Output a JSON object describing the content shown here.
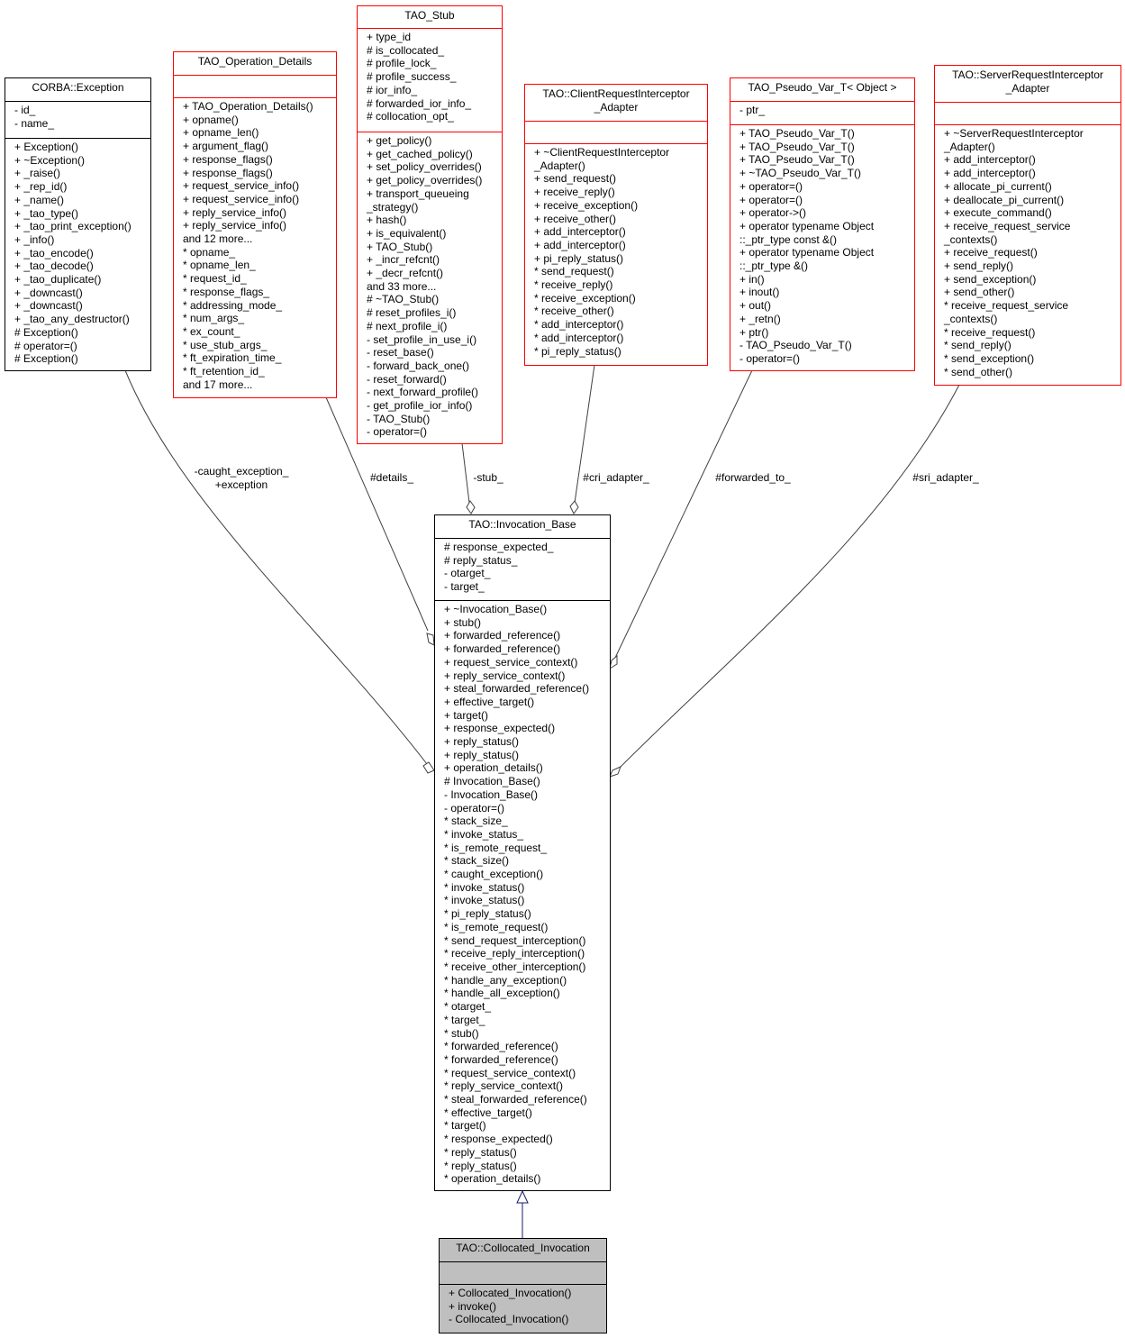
{
  "classes": {
    "corba_exception": {
      "title": "CORBA::Exception",
      "attributes": [
        "- id_",
        "- name_"
      ],
      "methods": [
        "+ Exception()",
        "+ ~Exception()",
        "+ _raise()",
        "+ _rep_id()",
        "+ _name()",
        "+ _tao_type()",
        "+ _tao_print_exception()",
        "+ _info()",
        "+ _tao_encode()",
        "+ _tao_decode()",
        "+ _tao_duplicate()",
        "+ _downcast()",
        "+ _downcast()",
        "+ _tao_any_destructor()",
        "# Exception()",
        "# operator=()",
        "# Exception()"
      ]
    },
    "operation_details": {
      "title": "TAO_Operation_Details",
      "attributes": [],
      "methods": [
        "+ TAO_Operation_Details()",
        "+ opname()",
        "+ opname_len()",
        "+ argument_flag()",
        "+ response_flags()",
        "+ response_flags()",
        "+ request_service_info()",
        "+ request_service_info()",
        "+ reply_service_info()",
        "+ reply_service_info()",
        "and 12 more...",
        "* opname_",
        "* opname_len_",
        "* request_id_",
        "* response_flags_",
        "* addressing_mode_",
        "* num_args_",
        "* ex_count_",
        "* use_stub_args_",
        "* ft_expiration_time_",
        "* ft_retention_id_",
        "and 17 more..."
      ]
    },
    "tao_stub": {
      "title": "TAO_Stub",
      "attributes": [
        "+ type_id",
        "# is_collocated_",
        "# profile_lock_",
        "# profile_success_",
        "# ior_info_",
        "# forwarded_ior_info_",
        "# collocation_opt_"
      ],
      "methods": [
        "+ get_policy()",
        "+ get_cached_policy()",
        "+ set_policy_overrides()",
        "+ get_policy_overrides()",
        "+ transport_queueing",
        "_strategy()",
        "+ hash()",
        "+ is_equivalent()",
        "+ TAO_Stub()",
        "+ _incr_refcnt()",
        "+ _decr_refcnt()",
        "and 33 more...",
        "# ~TAO_Stub()",
        "# reset_profiles_i()",
        "# next_profile_i()",
        "- set_profile_in_use_i()",
        "- reset_base()",
        "- forward_back_one()",
        "- reset_forward()",
        "- next_forward_profile()",
        "- get_profile_ior_info()",
        "- TAO_Stub()",
        "- operator=()"
      ]
    },
    "client_ri_adapter": {
      "title": "TAO::ClientRequestInterceptor\n_Adapter",
      "attributes": [],
      "methods": [
        "+ ~ClientRequestInterceptor",
        "_Adapter()",
        "+ send_request()",
        "+ receive_reply()",
        "+ receive_exception()",
        "+ receive_other()",
        "+ add_interceptor()",
        "+ add_interceptor()",
        "+ pi_reply_status()",
        "* send_request()",
        "* receive_reply()",
        "* receive_exception()",
        "* receive_other()",
        "* add_interceptor()",
        "* add_interceptor()",
        "* pi_reply_status()"
      ]
    },
    "pseudo_var": {
      "title": "TAO_Pseudo_Var_T< Object >",
      "attributes": [
        "- ptr_"
      ],
      "methods": [
        "+ TAO_Pseudo_Var_T()",
        "+ TAO_Pseudo_Var_T()",
        "+ TAO_Pseudo_Var_T()",
        "+ ~TAO_Pseudo_Var_T()",
        "+ operator=()",
        "+ operator=()",
        "+ operator->()",
        "+ operator typename Object",
        "::_ptr_type const &()",
        "+ operator typename Object",
        "::_ptr_type &()",
        "+ in()",
        "+ inout()",
        "+ out()",
        "+ _retn()",
        "+ ptr()",
        "- TAO_Pseudo_Var_T()",
        "- operator=()"
      ]
    },
    "server_ri_adapter": {
      "title": "TAO::ServerRequestInterceptor\n_Adapter",
      "attributes": [],
      "methods": [
        "+ ~ServerRequestInterceptor",
        "_Adapter()",
        "+ add_interceptor()",
        "+ add_interceptor()",
        "+ allocate_pi_current()",
        "+ deallocate_pi_current()",
        "+ execute_command()",
        "+ receive_request_service",
        "_contexts()",
        "+ receive_request()",
        "+ send_reply()",
        "+ send_exception()",
        "+ send_other()",
        "* receive_request_service",
        "_contexts()",
        "* receive_request()",
        "* send_reply()",
        "* send_exception()",
        "* send_other()"
      ]
    },
    "invocation_base": {
      "title": "TAO::Invocation_Base",
      "attributes": [
        "# response_expected_",
        "# reply_status_",
        "- otarget_",
        "- target_"
      ],
      "methods": [
        "+ ~Invocation_Base()",
        "+ stub()",
        "+ forwarded_reference()",
        "+ forwarded_reference()",
        "+ request_service_context()",
        "+ reply_service_context()",
        "+ steal_forwarded_reference()",
        "+ effective_target()",
        "+ target()",
        "+ response_expected()",
        "+ reply_status()",
        "+ reply_status()",
        "+ operation_details()",
        "# Invocation_Base()",
        "- Invocation_Base()",
        "- operator=()",
        "* stack_size_",
        "* invoke_status_",
        "* is_remote_request_",
        "* stack_size()",
        "* caught_exception()",
        "* invoke_status()",
        "* invoke_status()",
        "* pi_reply_status()",
        "* is_remote_request()",
        "* send_request_interception()",
        "* receive_reply_interception()",
        "* receive_other_interception()",
        "* handle_any_exception()",
        "* handle_all_exception()",
        "* otarget_",
        "* target_",
        "* stub()",
        "* forwarded_reference()",
        "* forwarded_reference()",
        "* request_service_context()",
        "* reply_service_context()",
        "* steal_forwarded_reference()",
        "* effective_target()",
        "* target()",
        "* response_expected()",
        "* reply_status()",
        "* reply_status()",
        "* operation_details()"
      ]
    },
    "collocated_invocation": {
      "title": "TAO::Collocated_Invocation",
      "attributes": [],
      "methods": [
        "+ Collocated_Invocation()",
        "+ invoke()",
        "- Collocated_Invocation()"
      ]
    }
  },
  "edges": {
    "caught_exception": "-caught_exception_\n+exception",
    "details": "#details_",
    "stub": "-stub_",
    "cri_adapter": "#cri_adapter_",
    "forwarded_to": "#forwarded_to_",
    "sri_adapter": "#sri_adapter_"
  },
  "colors": {
    "highlight_fill": "#bfbfbf",
    "undocumented_border": "#ff0000",
    "inheritance_edge": "#191970",
    "usage_edge": "#404040"
  }
}
